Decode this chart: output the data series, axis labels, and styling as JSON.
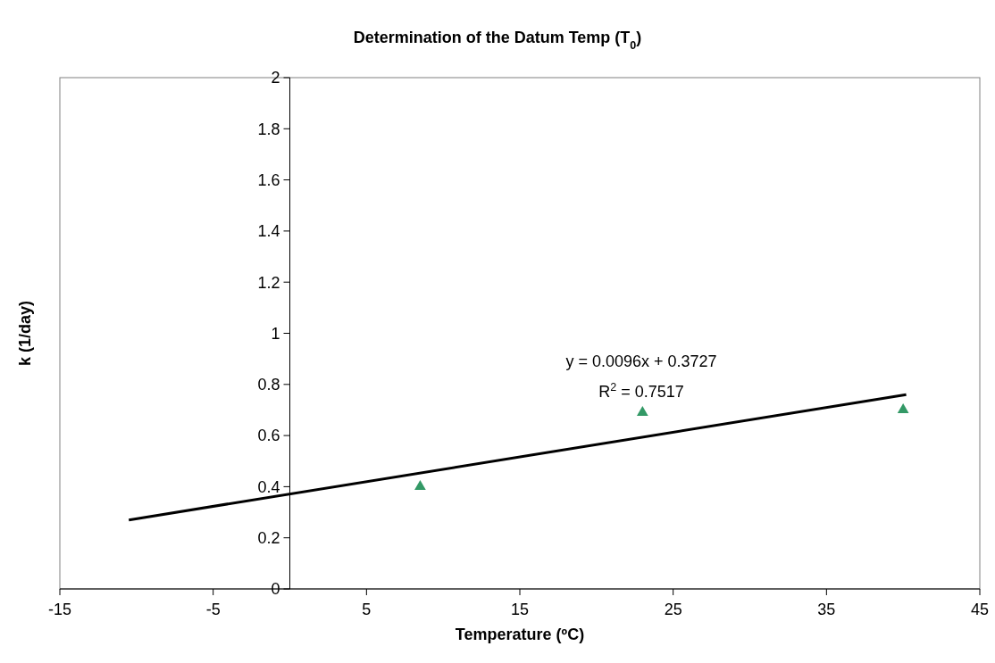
{
  "chart_data": {
    "type": "scatter",
    "title": "Determination of the Datum Temp (T$_{0}$)",
    "xlabel": "Temperature (ºC)",
    "ylabel": "k (1/day)",
    "x": [
      8.5,
      23,
      40
    ],
    "series": [
      {
        "color": "#339966",
        "values": [
          0.4,
          0.69,
          0.7
        ],
        "marker": "triangle"
      },
      {
        "type": "line",
        "color": "#000000",
        "x": [
          -10.5,
          40.2
        ],
        "values": [
          0.27,
          0.76
        ],
        "marker": "none",
        "line_style": "solid"
      }
    ],
    "xlim": [
      -15,
      45
    ],
    "xticks": [
      -15,
      -5,
      5,
      15,
      25,
      35,
      45
    ],
    "ylim": [
      0,
      2
    ],
    "yticks": [
      0,
      0.2,
      0.4,
      0.6,
      0.8,
      1,
      1.2,
      1.4,
      1.6,
      1.8,
      2
    ],
    "annotations": [
      "y = 0.0096x + 0.3727",
      "R$^{2}$ = 0.7517"
    ],
    "grid": false
  }
}
